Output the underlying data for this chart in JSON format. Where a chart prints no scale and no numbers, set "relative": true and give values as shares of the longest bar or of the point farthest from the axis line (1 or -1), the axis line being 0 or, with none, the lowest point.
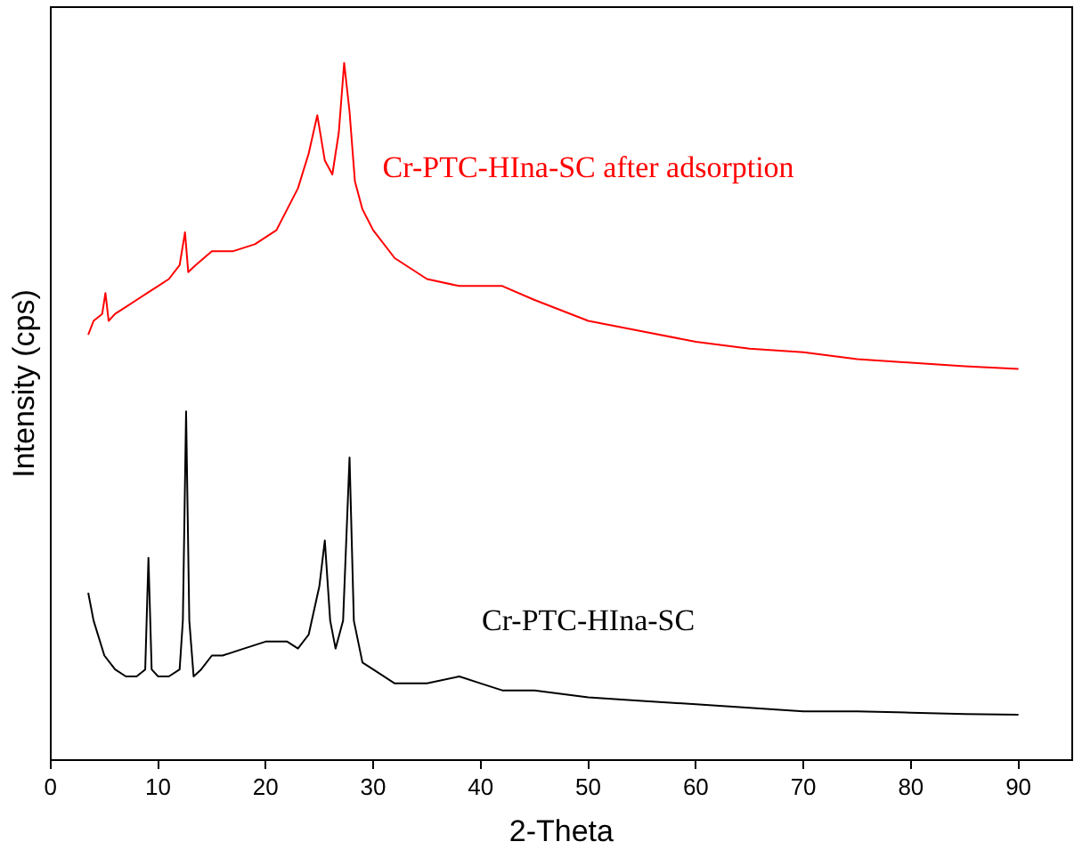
{
  "chart_data": {
    "type": "line",
    "xlabel": "2-Theta",
    "ylabel": "Intensity (cps)",
    "relative": true,
    "xlim": [
      0,
      95
    ],
    "xticks": [
      0,
      10,
      20,
      30,
      40,
      50,
      60,
      70,
      80,
      90
    ],
    "grid": false,
    "legend": false,
    "marker": "none",
    "line_style": "solid",
    "x": [
      3.5,
      4,
      5,
      6,
      7,
      8,
      8.8,
      9.1,
      9.4,
      10,
      11,
      12,
      12.3,
      12.6,
      12.9,
      13.3,
      14,
      15,
      16,
      18,
      20,
      22,
      23,
      24,
      25,
      25.5,
      26,
      26.5,
      27.2,
      27.8,
      28.2,
      29,
      30,
      32,
      35,
      38,
      40,
      42,
      45,
      50,
      55,
      60,
      65,
      70,
      75,
      80,
      85,
      90
    ],
    "series": [
      {
        "name": "Cr-PTC-HIna-SC after adsorption",
        "color": "#ff0000",
        "x": [
          3.5,
          4,
          4.8,
          5.1,
          5.4,
          6,
          7,
          8,
          9,
          10,
          11,
          12,
          12.5,
          12.8,
          13.5,
          15,
          17,
          19,
          21,
          22,
          23,
          24,
          24.8,
          25.5,
          26.2,
          26.8,
          27.3,
          27.8,
          28.3,
          29,
          30,
          32,
          35,
          38,
          40,
          42,
          45,
          50,
          55,
          60,
          65,
          70,
          75,
          80,
          85,
          90
        ],
        "values": [
          0.61,
          0.63,
          0.64,
          0.67,
          0.63,
          0.64,
          0.65,
          0.66,
          0.67,
          0.68,
          0.69,
          0.71,
          0.757,
          0.7,
          0.71,
          0.73,
          0.73,
          0.74,
          0.76,
          0.79,
          0.82,
          0.87,
          0.925,
          0.86,
          0.84,
          0.9,
          1.0,
          0.93,
          0.83,
          0.79,
          0.76,
          0.72,
          0.69,
          0.68,
          0.68,
          0.68,
          0.66,
          0.63,
          0.615,
          0.6,
          0.59,
          0.585,
          0.575,
          0.57,
          0.565,
          0.561
        ]
      },
      {
        "name": "Cr-PTC-HIna-SC",
        "color": "#000000",
        "values": [
          0.24,
          0.2,
          0.15,
          0.13,
          0.12,
          0.12,
          0.13,
          0.29,
          0.13,
          0.12,
          0.12,
          0.13,
          0.2,
          0.5,
          0.2,
          0.12,
          0.13,
          0.15,
          0.15,
          0.16,
          0.17,
          0.17,
          0.16,
          0.18,
          0.25,
          0.315,
          0.2,
          0.16,
          0.2,
          0.434,
          0.2,
          0.14,
          0.13,
          0.11,
          0.11,
          0.12,
          0.11,
          0.1,
          0.1,
          0.09,
          0.085,
          0.08,
          0.075,
          0.07,
          0.07,
          0.068,
          0.066,
          0.065
        ]
      }
    ]
  }
}
